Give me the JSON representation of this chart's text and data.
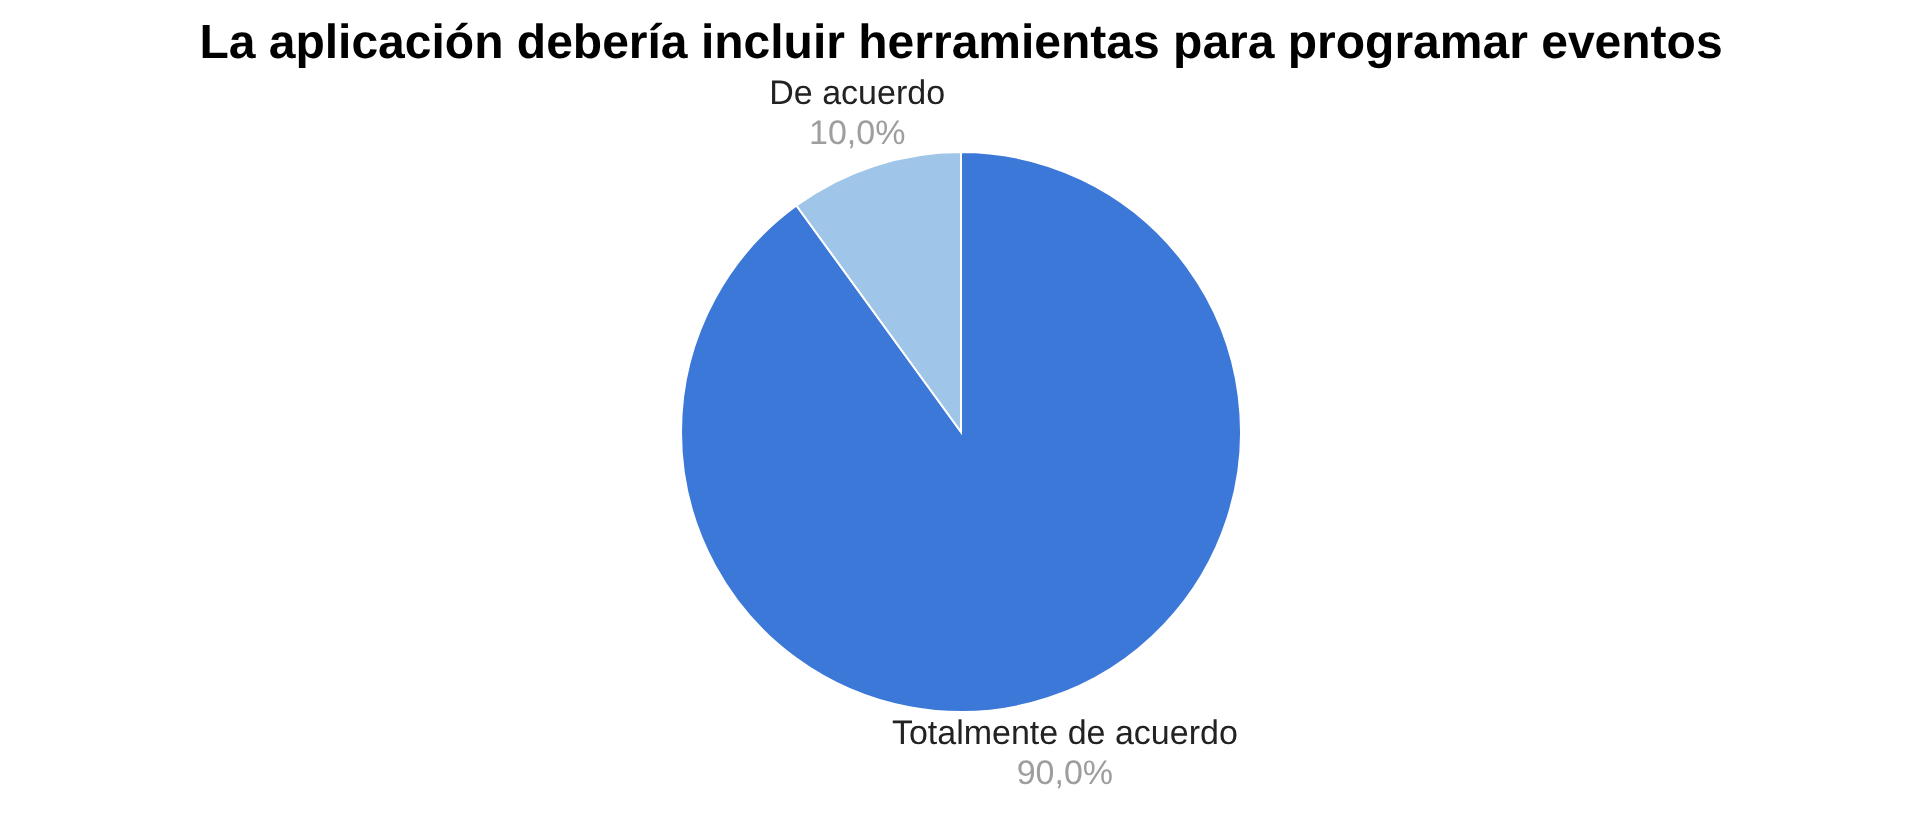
{
  "chart_data": {
    "type": "pie",
    "title": "La aplicación debería incluir herramientas para programar eventos",
    "categories": [
      "Totalmente de acuerdo",
      "De acuerdo"
    ],
    "values": [
      90,
      10
    ],
    "colors": [
      "#3c78d8",
      "#9fc5e8"
    ],
    "value_labels": [
      "90,0%",
      "10,0%"
    ],
    "legend": false
  }
}
